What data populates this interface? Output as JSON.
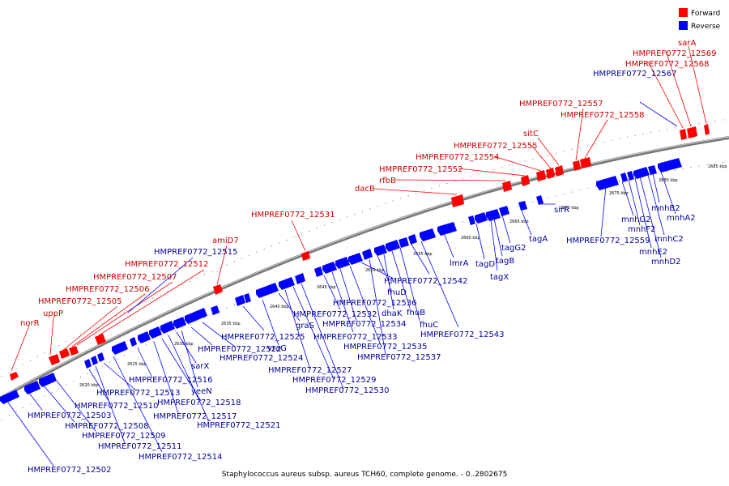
{
  "legend": [
    {
      "label": "Forward",
      "color": "#ff0000"
    },
    {
      "label": "Reverse",
      "color": "#0000ff"
    }
  ],
  "caption": "Staphylococcus aureus subsp. aureus TCH60, complete genome. - 0..2802675",
  "colors": {
    "forward": "#ff0000",
    "reverse": "#0000ff",
    "forward_text": "#cc0000",
    "reverse_text": "#000099",
    "backbone": "#808080"
  },
  "scale_ticks": [
    "2620 kbp",
    "2625 kbp",
    "2630 kbp",
    "2635 kbp",
    "2640 kbp",
    "2645 kbp",
    "2650 kbp",
    "2655 kbp",
    "2660 kbp",
    "2665 kbp",
    "2670 kbp",
    "2675 kbp",
    "2680 kbp",
    "2685 kbp"
  ],
  "forward_labels": [
    "norR",
    "uppP",
    "HMPREF0772_12505",
    "HMPREF0772_12506",
    "HMPREF0772_12507",
    "HMPREF0772_12512",
    "amiD7",
    "HMPREF0772_12531",
    "dacB",
    "rfbB",
    "HMPREF0772_12552",
    "HMPREF0772_12554",
    "HMPREF0772_12555",
    "sitC",
    "HMPREF0772_12557",
    "HMPREF0772_12558",
    "HMPREF0772_12568",
    "HMPREF0772_12569",
    "sarA"
  ],
  "reverse_labels": [
    "HMPREF0772_12515",
    "HMPREF0772_12502",
    "HMPREF0772_12503",
    "HMPREF0772_12508",
    "HMPREF0772_12509",
    "HMPREF0772_12510",
    "HMPREF0772_12511",
    "HMPREF0772_12513",
    "HMPREF0772_12514",
    "HMPREF0772_12516",
    "HMPREF0772_12517",
    "HMPREF0772_12518",
    "HMPREF0772_12521",
    "HMPREF0772_12522",
    "HMPREF0772_12524",
    "HMPREF0772_12525",
    "sarX",
    "yeeN",
    "vraG",
    "graS",
    "HMPREF0772_12527",
    "HMPREF0772_12529",
    "HMPREF0772_12530",
    "HMPREF0772_12532",
    "HMPREF0772_12533",
    "HMPREF0772_12534",
    "HMPREF0772_12535",
    "HMPREF0772_12536",
    "HMPREF0772_12537",
    "fhuD",
    "dhaK",
    "fhuB",
    "fhuC",
    "HMPREF0772_12542",
    "HMPREF0772_12543",
    "lmrA",
    "tagD",
    "tagX",
    "tagB",
    "tagG2",
    "tagA",
    "sirR",
    "HMPREF0772_12559",
    "mnhG2",
    "mnhF2",
    "mnhE2",
    "mnhD2",
    "mnhC2",
    "mnhB2",
    "mnhA2",
    "HMPREF0772_12567"
  ]
}
